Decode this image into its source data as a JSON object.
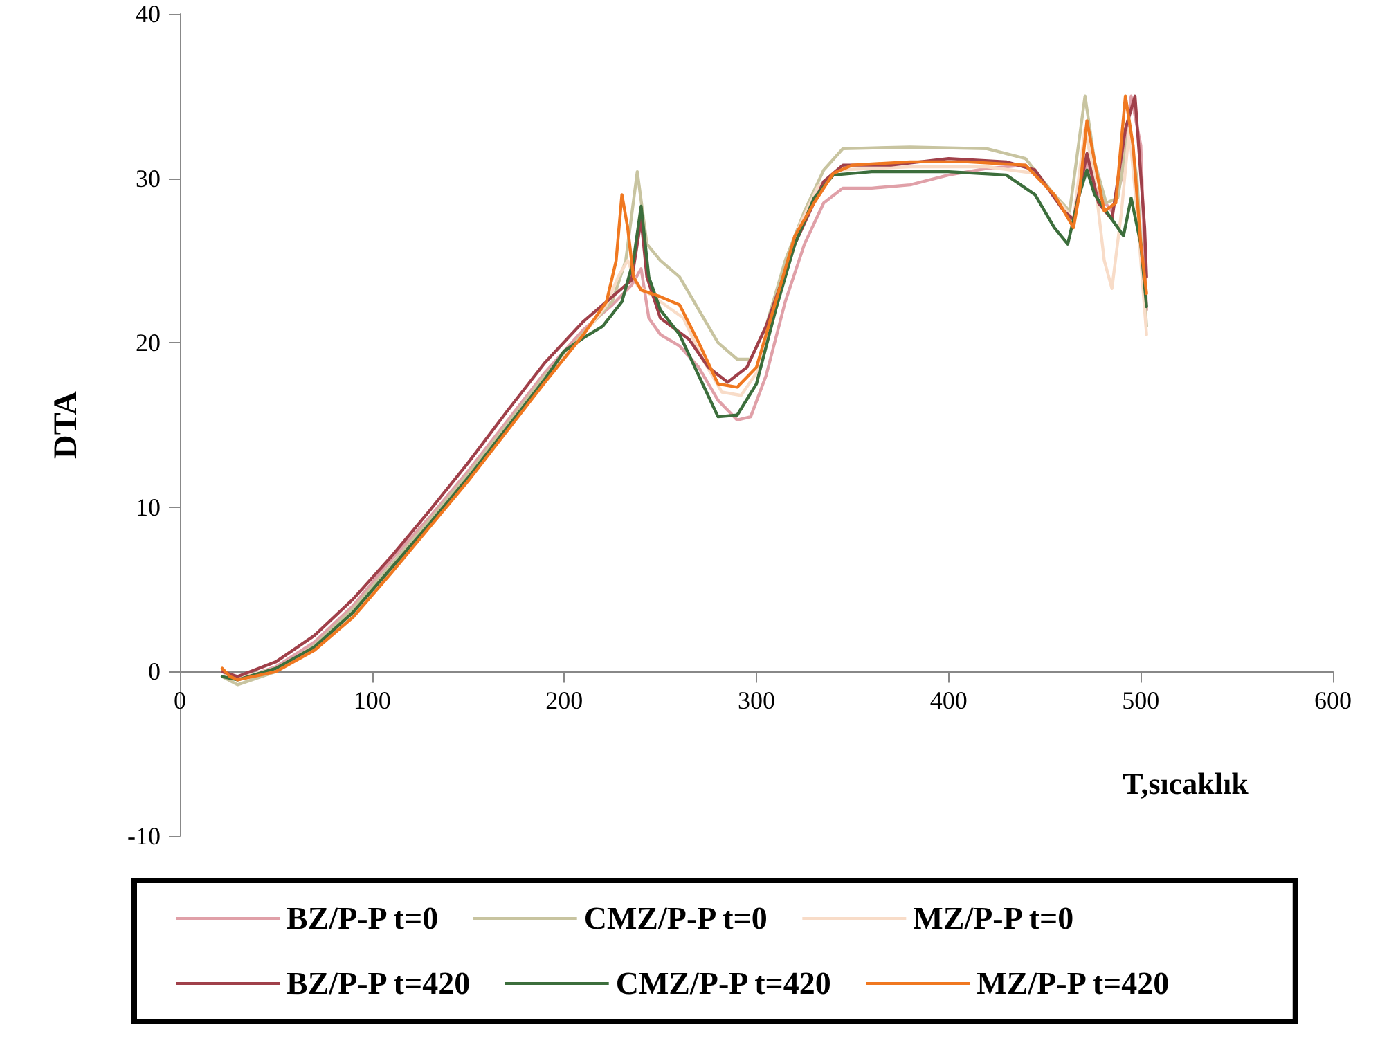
{
  "chart_data": {
    "type": "line",
    "xlabel": "T,sıcaklık",
    "ylabel": "DTA",
    "xlim": [
      0,
      600
    ],
    "xticks": [
      0,
      100,
      200,
      300,
      400,
      500,
      600
    ],
    "ylim": [
      -10,
      40
    ],
    "yticks": [
      -10,
      0,
      10,
      20,
      30,
      40
    ],
    "grid": false,
    "legend": "bottom",
    "marker": "none",
    "line_style": "solid",
    "series": [
      {
        "name": "BZ/P-P t=0",
        "color": "#e0a0a8",
        "x": [
          22,
          30,
          50,
          70,
          90,
          110,
          130,
          150,
          170,
          190,
          210,
          225,
          235,
          240,
          244,
          250,
          260,
          270,
          280,
          290,
          297,
          305,
          315,
          325,
          335,
          345,
          360,
          380,
          400,
          420,
          440,
          455,
          465,
          472,
          478,
          485,
          490,
          495,
          500,
          503
        ],
        "values": [
          0,
          -0.5,
          0.3,
          1.8,
          4,
          6.8,
          9.4,
          12.2,
          15.2,
          18.2,
          20.8,
          22.3,
          23.5,
          24.5,
          21.5,
          20.5,
          19.8,
          18.5,
          16.5,
          15.3,
          15.5,
          18,
          22.5,
          26,
          28.5,
          29.4,
          29.4,
          29.6,
          30.2,
          30.6,
          30.8,
          29,
          27.5,
          31,
          29,
          28,
          30,
          35,
          32,
          22
        ]
      },
      {
        "name": "CMZ/P-P t=0",
        "color": "#c8c4a0",
        "x": [
          22,
          30,
          50,
          70,
          90,
          110,
          130,
          150,
          170,
          190,
          210,
          225,
          232,
          238,
          243,
          250,
          260,
          270,
          280,
          290,
          297,
          305,
          315,
          325,
          335,
          345,
          380,
          420,
          440,
          455,
          463,
          471,
          476,
          482,
          488,
          494,
          498,
          503
        ],
        "values": [
          -0.3,
          -0.8,
          0,
          1.6,
          3.8,
          6.5,
          9.2,
          12,
          15,
          18,
          20.6,
          22.5,
          25,
          30.4,
          26,
          25,
          24,
          22,
          20,
          19,
          19,
          21,
          25,
          28,
          30.5,
          31.8,
          31.9,
          31.8,
          31.2,
          29,
          28,
          35,
          31,
          28.5,
          28.8,
          33,
          30,
          21
        ]
      },
      {
        "name": "MZ/P-P t=0",
        "color": "#f8dcc8",
        "x": [
          22,
          30,
          50,
          70,
          90,
          110,
          130,
          150,
          170,
          190,
          210,
          222,
          228,
          233,
          238,
          250,
          262,
          272,
          282,
          292,
          302,
          312,
          322,
          332,
          342,
          380,
          420,
          445,
          458,
          465,
          471,
          476,
          481,
          485,
          490,
          494,
          498,
          503
        ],
        "values": [
          0,
          -0.4,
          0.2,
          1.5,
          3.5,
          6.2,
          9,
          11.8,
          14.8,
          17.8,
          20.5,
          22.3,
          24,
          25,
          23.5,
          22.5,
          21.5,
          19,
          17,
          16.8,
          18.5,
          23,
          27,
          29.5,
          30.5,
          30.7,
          30.7,
          30.3,
          28.5,
          27.5,
          33,
          30,
          25,
          23.3,
          28,
          33,
          28,
          20.5
        ]
      },
      {
        "name": "BZ/P-P t=420",
        "color": "#a0404a",
        "x": [
          22,
          30,
          50,
          70,
          90,
          110,
          130,
          150,
          170,
          190,
          210,
          225,
          235,
          240,
          243,
          250,
          265,
          275,
          285,
          295,
          305,
          320,
          335,
          345,
          370,
          400,
          430,
          445,
          460,
          465,
          472,
          478,
          485,
          492,
          497,
          502,
          503
        ],
        "values": [
          0,
          -0.3,
          0.6,
          2.2,
          4.4,
          7,
          9.8,
          12.7,
          15.8,
          18.8,
          21.3,
          22.8,
          23.8,
          27.5,
          24,
          21.5,
          20.2,
          18.5,
          17.6,
          18.5,
          21,
          26,
          29.8,
          30.8,
          30.8,
          31.2,
          31,
          30.5,
          28,
          27.5,
          31.5,
          28.5,
          27.5,
          33,
          35,
          27,
          24
        ]
      },
      {
        "name": "CMZ/P-P t=420",
        "color": "#3c6e3c",
        "x": [
          22,
          30,
          50,
          70,
          90,
          110,
          130,
          150,
          170,
          190,
          200,
          210,
          220,
          230,
          236,
          240,
          244,
          250,
          260,
          270,
          280,
          290,
          300,
          310,
          320,
          330,
          340,
          360,
          400,
          430,
          445,
          455,
          462,
          468,
          472,
          476,
          482,
          488,
          491,
          495,
          500,
          503
        ],
        "values": [
          -0.3,
          -0.5,
          0.2,
          1.5,
          3.6,
          6.3,
          9,
          11.8,
          14.8,
          17.8,
          19.5,
          20.3,
          21,
          22.5,
          25,
          28.3,
          24,
          22,
          20.5,
          18,
          15.5,
          15.6,
          17.5,
          22,
          26,
          28.8,
          30.2,
          30.4,
          30.4,
          30.2,
          29,
          27,
          26,
          29,
          30.5,
          29,
          28,
          27,
          26.5,
          28.8,
          26,
          22.2
        ]
      },
      {
        "name": "MZ/P-P t=420",
        "color": "#f07820",
        "x": [
          22,
          26,
          30,
          50,
          70,
          90,
          110,
          130,
          150,
          170,
          190,
          210,
          222,
          227,
          230,
          233,
          236,
          240,
          250,
          260,
          270,
          280,
          290,
          300,
          310,
          320,
          330,
          340,
          350,
          380,
          410,
          440,
          455,
          465,
          468,
          472,
          476,
          481,
          487,
          492,
          496,
          500,
          503
        ],
        "values": [
          0.2,
          -0.3,
          -0.5,
          0,
          1.3,
          3.3,
          6,
          8.8,
          11.6,
          14.6,
          17.6,
          20.5,
          22.5,
          25,
          29,
          27,
          24,
          23.2,
          22.8,
          22.3,
          20,
          17.5,
          17.3,
          18.5,
          22.5,
          26.5,
          28.5,
          30.3,
          30.8,
          31,
          31,
          30.8,
          29,
          27,
          29,
          33.5,
          31,
          28,
          28.5,
          35,
          32,
          26,
          23
        ]
      }
    ]
  }
}
